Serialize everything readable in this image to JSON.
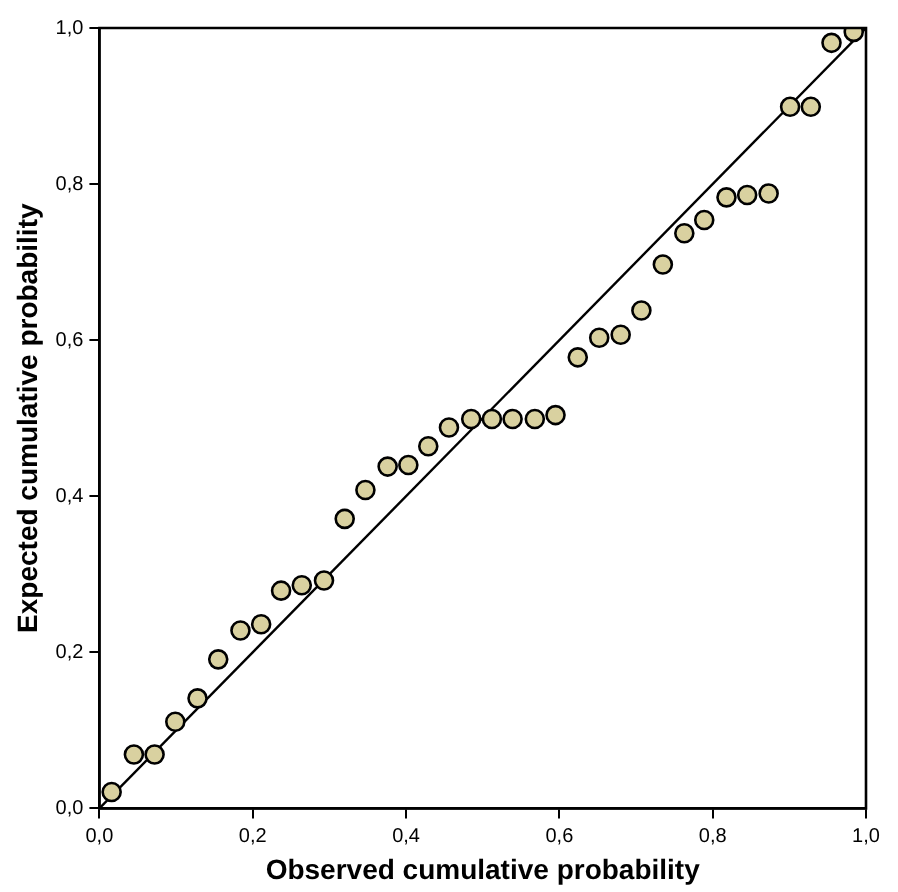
{
  "chart_data": {
    "type": "scatter",
    "xlabel": "Observed cumulative probability",
    "ylabel": "Expected cumulative probability",
    "xlim": [
      0,
      1
    ],
    "ylim": [
      0,
      1
    ],
    "xticks": [
      {
        "value": 0,
        "label": "0,0"
      },
      {
        "value": 0.2,
        "label": "0,2"
      },
      {
        "value": 0.4,
        "label": "0,4"
      },
      {
        "value": 0.6,
        "label": "0,6"
      },
      {
        "value": 0.8,
        "label": "0,8"
      },
      {
        "value": 1,
        "label": "1,0"
      }
    ],
    "yticks": [
      {
        "value": 0,
        "label": "0,0"
      },
      {
        "value": 0.2,
        "label": "0,2"
      },
      {
        "value": 0.4,
        "label": "0,4"
      },
      {
        "value": 0.6,
        "label": "0,6"
      },
      {
        "value": 0.8,
        "label": "0,8"
      },
      {
        "value": 1,
        "label": "1,0"
      }
    ],
    "grid": false,
    "legend": false,
    "marker": "circle",
    "series": [
      {
        "color": "#d9d1a0",
        "x": [
          0.016,
          0.045,
          0.072,
          0.099,
          0.128,
          0.155,
          0.184,
          0.211,
          0.237,
          0.264,
          0.293,
          0.32,
          0.347,
          0.376,
          0.403,
          0.429,
          0.456,
          0.485,
          0.512,
          0.539,
          0.568,
          0.595,
          0.624,
          0.652,
          0.68,
          0.707,
          0.735,
          0.763,
          0.789,
          0.818,
          0.845,
          0.873,
          0.901,
          0.928,
          0.955,
          0.984
        ],
        "values": [
          0.021,
          0.069,
          0.069,
          0.111,
          0.141,
          0.191,
          0.228,
          0.236,
          0.279,
          0.286,
          0.292,
          0.371,
          0.408,
          0.438,
          0.44,
          0.464,
          0.488,
          0.499,
          0.499,
          0.499,
          0.499,
          0.504,
          0.578,
          0.603,
          0.607,
          0.638,
          0.697,
          0.737,
          0.754,
          0.783,
          0.786,
          0.788,
          0.899,
          0.899,
          0.981,
          0.995
        ]
      },
      {
        "type": "line",
        "color": "#000000",
        "marker": "none",
        "x": [
          0,
          1
        ],
        "values": [
          0,
          1
        ]
      }
    ]
  }
}
